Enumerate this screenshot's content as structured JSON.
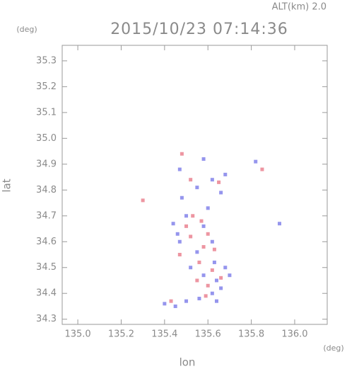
{
  "chart_data": {
    "type": "scatter",
    "title": "2015/10/23 07:14:36",
    "annotation": "ALT(km) 2.0",
    "y_unit": "(deg)",
    "x_unit": "(deg)",
    "x_label": "lon",
    "y_label": "lat",
    "xlim": [
      134.928,
      136.15
    ],
    "ylim": [
      34.28,
      35.36
    ],
    "xticks": [
      {
        "value": 135.0,
        "label": "135.0"
      },
      135.2,
      135.4,
      135.6,
      135.8,
      {
        "value": 136.0,
        "label": "136.0"
      }
    ],
    "yticks": [
      34.3,
      34.4,
      34.5,
      34.6,
      34.7,
      34.8,
      34.9,
      {
        "value": 35.0,
        "label": "35.0"
      },
      35.1,
      35.2,
      35.3
    ],
    "series": [
      {
        "color": "#7a7ae8",
        "x": [
          135.47,
          135.55,
          135.62,
          135.68,
          135.58,
          135.82,
          135.93,
          135.44,
          135.5,
          135.58,
          135.62,
          135.47,
          135.55,
          135.63,
          135.68,
          135.58,
          135.64,
          135.66,
          135.62,
          135.56,
          135.45,
          135.5,
          135.7,
          135.52,
          135.46,
          135.6,
          135.48,
          135.66,
          135.4,
          135.64
        ],
        "y": [
          34.88,
          34.81,
          34.84,
          34.86,
          34.92,
          34.91,
          34.67,
          34.67,
          34.7,
          34.66,
          34.6,
          34.6,
          34.56,
          34.52,
          34.5,
          34.47,
          34.45,
          34.42,
          34.4,
          34.38,
          34.35,
          34.37,
          34.47,
          34.5,
          34.63,
          34.73,
          34.77,
          34.79,
          34.36,
          34.37
        ]
      },
      {
        "color": "#e87a8a",
        "x": [
          135.3,
          135.48,
          135.52,
          135.65,
          135.85,
          135.53,
          135.57,
          135.6,
          135.52,
          135.58,
          135.56,
          135.62,
          135.6,
          135.59,
          135.43,
          135.5,
          135.47,
          135.66,
          135.55,
          135.63
        ],
        "y": [
          34.76,
          34.94,
          34.84,
          34.83,
          34.88,
          34.7,
          34.68,
          34.63,
          34.62,
          34.58,
          34.52,
          34.49,
          34.43,
          34.39,
          34.37,
          34.66,
          34.55,
          34.46,
          34.45,
          34.57
        ]
      }
    ]
  }
}
